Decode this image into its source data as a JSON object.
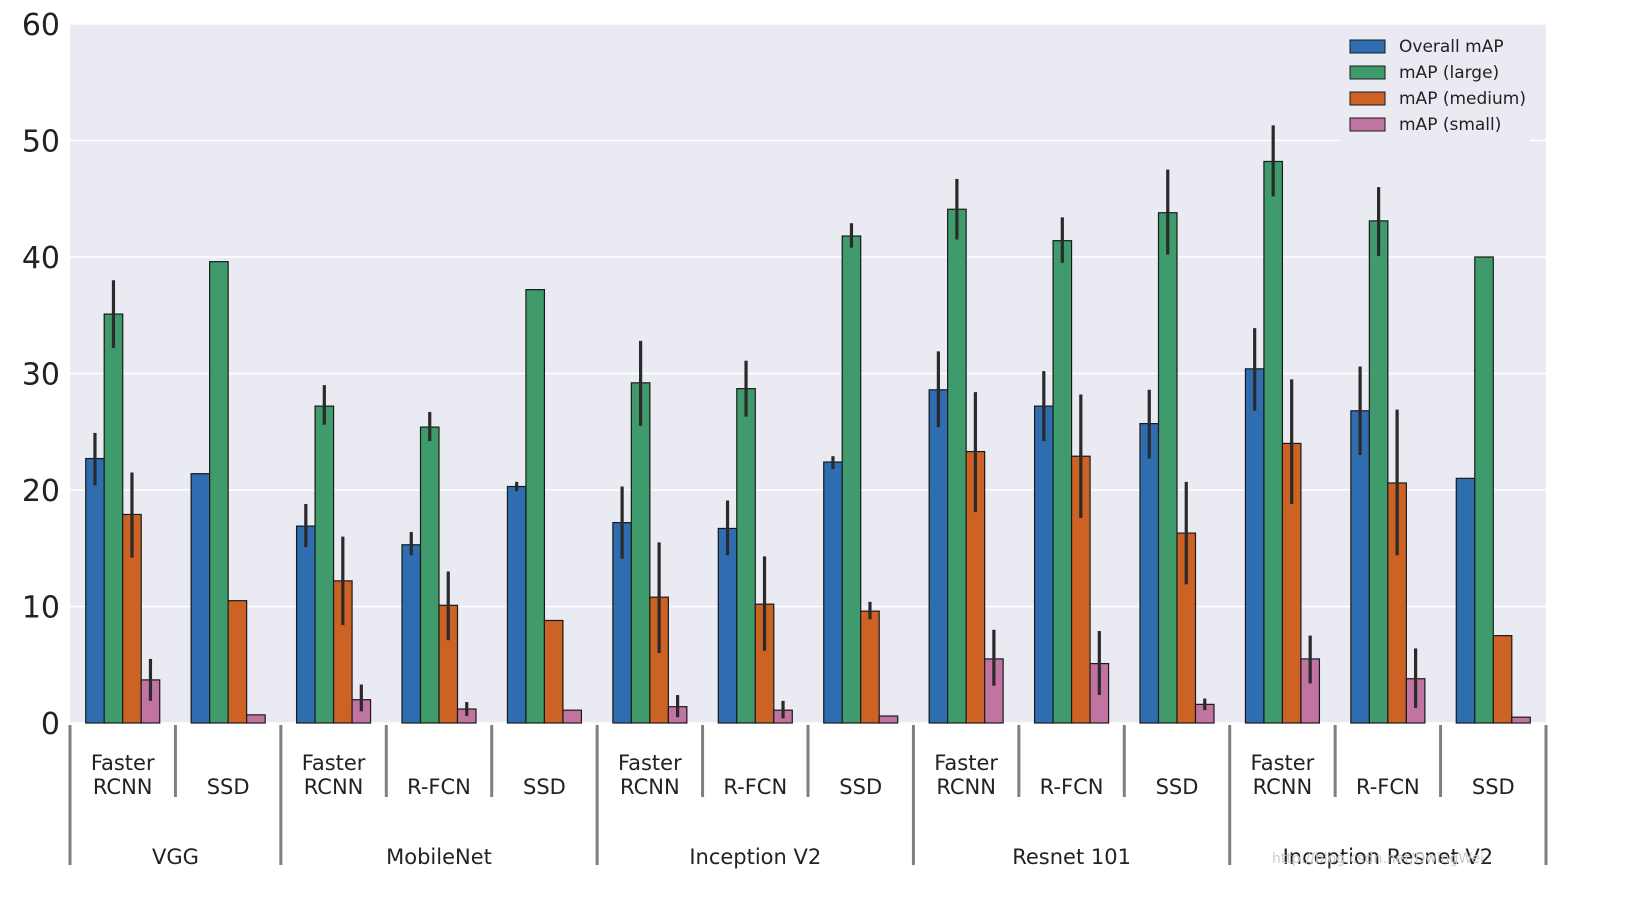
{
  "chart_data": {
    "type": "bar",
    "title": "",
    "xlabel": "",
    "ylabel": "",
    "ylim": [
      0,
      60
    ],
    "yticks": [
      0,
      10,
      20,
      30,
      40,
      50,
      60
    ],
    "grid": true,
    "legend_location": "top-right",
    "series_names": [
      "Overall mAP",
      "mAP (large)",
      "mAP (medium)",
      "mAP (small)"
    ],
    "series_colors": [
      "#2d6db0",
      "#3f9b6c",
      "#cc6325",
      "#c173a2"
    ],
    "groups": [
      {
        "name": "VGG",
        "subgroups": [
          {
            "label_lines": [
              "Faster",
              "RCNN"
            ],
            "values": [
              22.7,
              35.1,
              17.9,
              3.7
            ],
            "errors": [
              [
                20.4,
                24.9
              ],
              [
                32.2,
                38.0
              ],
              [
                14.2,
                21.5
              ],
              [
                1.9,
                5.5
              ]
            ]
          },
          {
            "label_lines": [
              "SSD"
            ],
            "values": [
              21.4,
              39.6,
              10.5,
              0.7
            ],
            "errors": [
              null,
              null,
              null,
              null
            ]
          }
        ]
      },
      {
        "name": "MobileNet",
        "subgroups": [
          {
            "label_lines": [
              "Faster",
              "RCNN"
            ],
            "values": [
              16.9,
              27.2,
              12.2,
              2.0
            ],
            "errors": [
              [
                15.1,
                18.8
              ],
              [
                25.6,
                29.0
              ],
              [
                8.4,
                16.0
              ],
              [
                1.0,
                3.3
              ]
            ]
          },
          {
            "label_lines": [
              "R-FCN"
            ],
            "values": [
              15.3,
              25.4,
              10.1,
              1.2
            ],
            "errors": [
              [
                14.4,
                16.4
              ],
              [
                24.2,
                26.7
              ],
              [
                7.1,
                13.0
              ],
              [
                0.6,
                1.8
              ]
            ]
          },
          {
            "label_lines": [
              "SSD"
            ],
            "values": [
              20.3,
              37.2,
              8.8,
              1.1
            ],
            "errors": [
              [
                19.9,
                20.7
              ],
              null,
              null,
              null
            ]
          }
        ]
      },
      {
        "name": "Inception V2",
        "subgroups": [
          {
            "label_lines": [
              "Faster",
              "RCNN"
            ],
            "values": [
              17.2,
              29.2,
              10.8,
              1.4
            ],
            "errors": [
              [
                14.1,
                20.3
              ],
              [
                25.5,
                32.8
              ],
              [
                6.0,
                15.5
              ],
              [
                0.5,
                2.4
              ]
            ]
          },
          {
            "label_lines": [
              "R-FCN"
            ],
            "values": [
              16.7,
              28.7,
              10.2,
              1.1
            ],
            "errors": [
              [
                14.4,
                19.1
              ],
              [
                26.3,
                31.1
              ],
              [
                6.2,
                14.3
              ],
              [
                0.4,
                1.9
              ]
            ]
          },
          {
            "label_lines": [
              "SSD"
            ],
            "values": [
              22.4,
              41.8,
              9.6,
              0.6
            ],
            "errors": [
              [
                21.8,
                22.9
              ],
              [
                40.8,
                42.9
              ],
              [
                8.9,
                10.4
              ],
              null
            ]
          }
        ]
      },
      {
        "name": "Resnet 101",
        "subgroups": [
          {
            "label_lines": [
              "Faster",
              "RCNN"
            ],
            "values": [
              28.6,
              44.1,
              23.3,
              5.5
            ],
            "errors": [
              [
                25.4,
                31.9
              ],
              [
                41.5,
                46.7
              ],
              [
                18.1,
                28.4
              ],
              [
                3.2,
                8.0
              ]
            ]
          },
          {
            "label_lines": [
              "R-FCN"
            ],
            "values": [
              27.2,
              41.4,
              22.9,
              5.1
            ],
            "errors": [
              [
                24.2,
                30.2
              ],
              [
                39.5,
                43.4
              ],
              [
                17.6,
                28.2
              ],
              [
                2.4,
                7.9
              ]
            ]
          },
          {
            "label_lines": [
              "SSD"
            ],
            "values": [
              25.7,
              43.8,
              16.3,
              1.6
            ],
            "errors": [
              [
                22.7,
                28.6
              ],
              [
                40.2,
                47.5
              ],
              [
                11.9,
                20.7
              ],
              [
                1.1,
                2.1
              ]
            ]
          }
        ]
      },
      {
        "name": "Inception Resnet V2",
        "subgroups": [
          {
            "label_lines": [
              "Faster",
              "RCNN"
            ],
            "values": [
              30.4,
              48.2,
              24.0,
              5.5
            ],
            "errors": [
              [
                26.8,
                33.9
              ],
              [
                45.2,
                51.3
              ],
              [
                18.8,
                29.5
              ],
              [
                3.4,
                7.5
              ]
            ]
          },
          {
            "label_lines": [
              "R-FCN"
            ],
            "values": [
              26.8,
              43.1,
              20.6,
              3.8
            ],
            "errors": [
              [
                23.0,
                30.6
              ],
              [
                40.1,
                46.0
              ],
              [
                14.4,
                26.9
              ],
              [
                1.3,
                6.4
              ]
            ]
          },
          {
            "label_lines": [
              "SSD"
            ],
            "values": [
              21.0,
              40.0,
              7.5,
              0.5
            ],
            "errors": [
              null,
              null,
              null,
              null
            ]
          }
        ]
      }
    ]
  },
  "watermark": "http://blog.csdn.net/DwingWei"
}
